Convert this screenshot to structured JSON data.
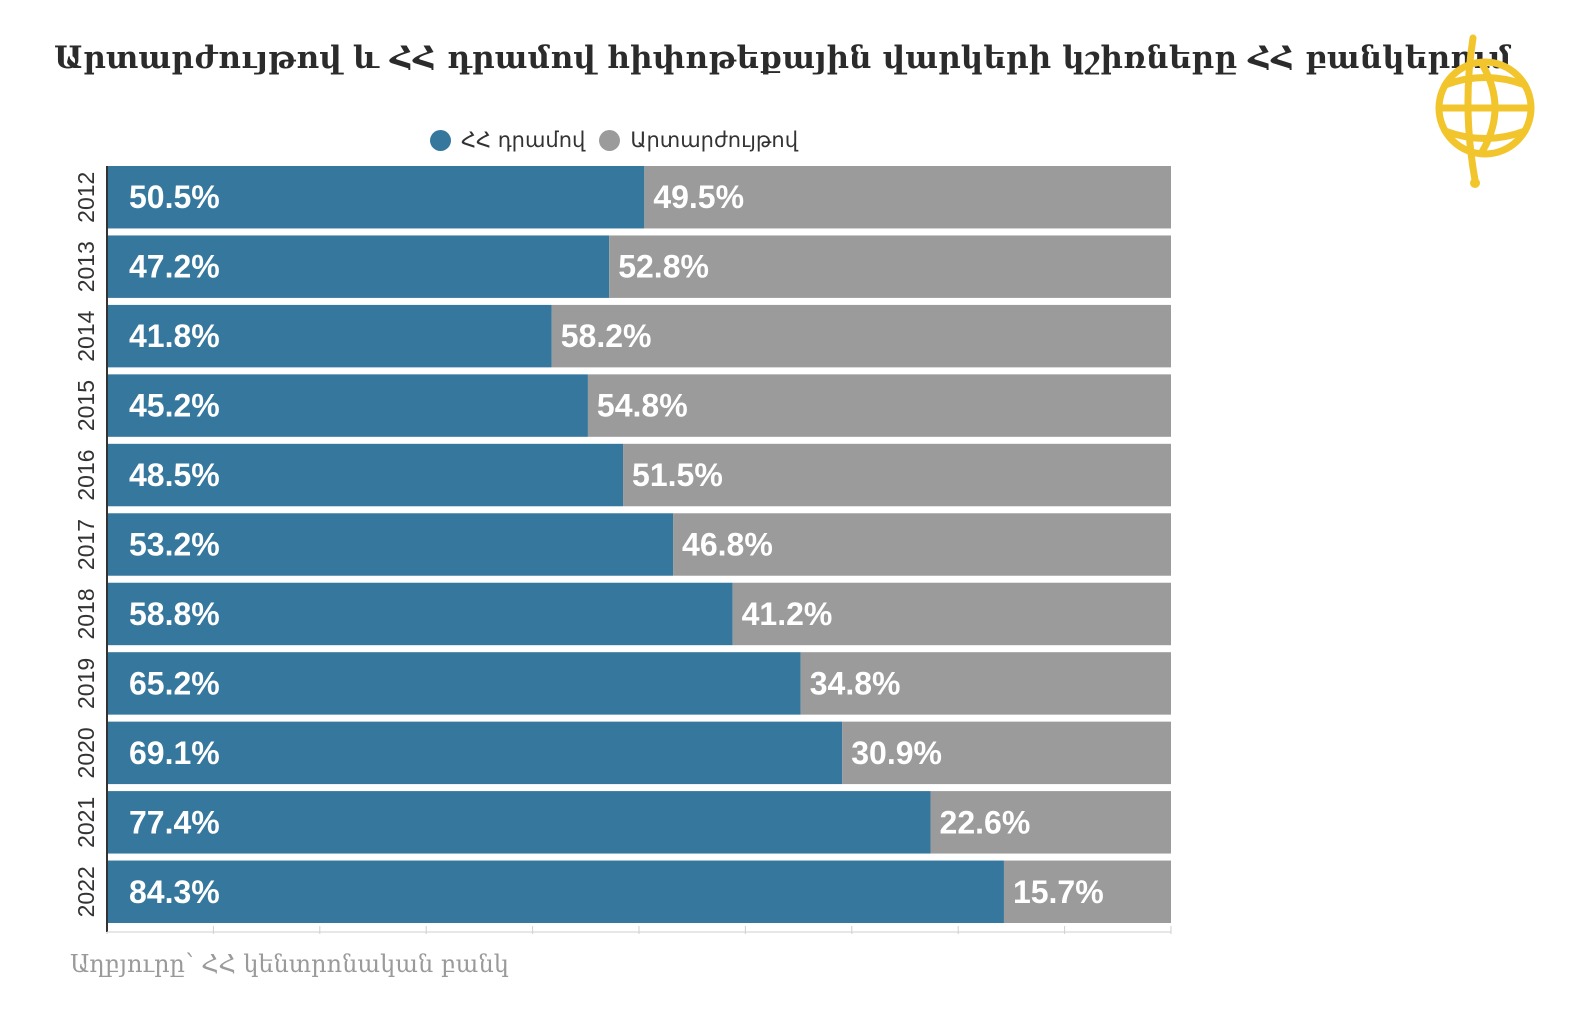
{
  "title": "Արտարժույթով և ՀՀ դրամով հիփոթեքային վարկերի կշիռները ՀՀ բանկերում",
  "source": "Աղբյուրը՝ ՀՀ կենտրոնական բանկ",
  "logo": {
    "icon": "globe-logo-icon",
    "color": "#f2c52c"
  },
  "chart_data": {
    "type": "bar",
    "orientation": "horizontal",
    "stacked": true,
    "categories": [
      "2012",
      "2013",
      "2014",
      "2015",
      "2016",
      "2017",
      "2018",
      "2019",
      "2020",
      "2021",
      "2022"
    ],
    "series": [
      {
        "name": "ՀՀ դրամով",
        "color": "#35779d",
        "values": [
          50.5,
          47.2,
          41.8,
          45.2,
          48.5,
          53.2,
          58.8,
          65.2,
          69.1,
          77.4,
          84.3
        ],
        "labels": [
          "50.5%",
          "47.2%",
          "41.8%",
          "45.2%",
          "48.5%",
          "53.2%",
          "58.8%",
          "65.2%",
          "69.1%",
          "77.4%",
          "84.3%"
        ]
      },
      {
        "name": "Արտարժույթով",
        "color": "#9b9b9b",
        "values": [
          49.5,
          52.8,
          58.2,
          54.8,
          51.5,
          46.8,
          41.2,
          34.8,
          30.9,
          22.6,
          15.7
        ],
        "labels": [
          "49.5%",
          "52.8%",
          "58.2%",
          "54.8%",
          "51.5%",
          "46.8%",
          "41.2%",
          "34.8%",
          "30.9%",
          "22.6%",
          "15.7%"
        ]
      }
    ],
    "xlim": [
      0,
      100
    ],
    "legend": "top",
    "grid": true
  }
}
